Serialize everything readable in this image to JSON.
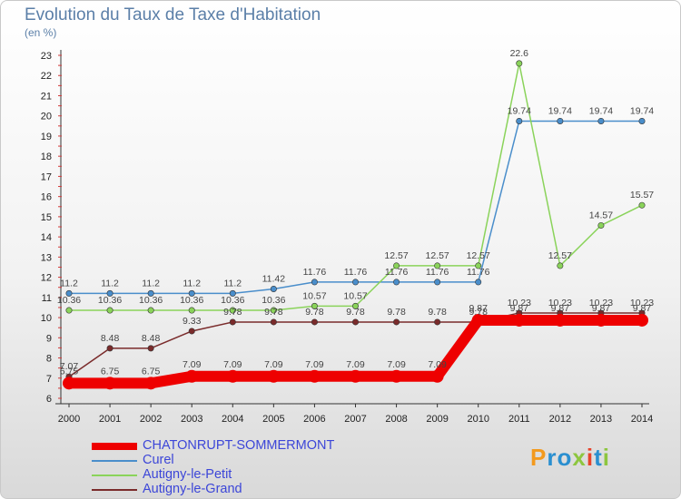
{
  "header": {
    "title": "Evolution du Taux de Taxe d'Habitation",
    "unit": "(en %)"
  },
  "chart_data": {
    "type": "line",
    "x": [
      "2000",
      "2001",
      "2002",
      "2003",
      "2004",
      "2005",
      "2006",
      "2007",
      "2008",
      "2009",
      "2010",
      "2011",
      "2012",
      "2013",
      "2014"
    ],
    "ylim": [
      6,
      23
    ],
    "yticks": [
      6,
      7,
      8,
      9,
      10,
      11,
      12,
      13,
      14,
      15,
      16,
      17,
      18,
      19,
      20,
      21,
      22,
      23
    ],
    "grid": false,
    "legend_position": "bottom-left",
    "series": [
      {
        "name": "CHATONRUPT-SOMMERMONT",
        "color": "#ee0000",
        "values": [
          6.75,
          6.75,
          6.75,
          7.09,
          7.09,
          7.09,
          7.09,
          7.09,
          7.09,
          7.09,
          9.87,
          9.87,
          9.87,
          9.87,
          9.87
        ],
        "labels": [
          "6.75",
          "6.75",
          "6.75",
          "7.09",
          "7.09",
          "7.09",
          "7.09",
          "7.09",
          "7.09",
          "7.09",
          "9.87",
          "9.87",
          "9.87",
          "9.87",
          "9.87"
        ]
      },
      {
        "name": "Curel",
        "color": "#4a8ecb",
        "values": [
          11.2,
          11.2,
          11.2,
          11.2,
          11.2,
          11.42,
          11.76,
          11.76,
          11.76,
          11.76,
          11.76,
          19.74,
          19.74,
          19.74,
          19.74
        ],
        "labels": [
          "11.2",
          "11.2",
          "11.2",
          "11.2",
          "11.2",
          "11.42",
          "11.76",
          "11.76",
          "11.76",
          "11.76",
          "11.76",
          "19.74",
          "19.74",
          "19.74",
          "19.74"
        ]
      },
      {
        "name": "Autigny-le-Petit",
        "color": "#8ad35a",
        "values": [
          10.36,
          10.36,
          10.36,
          10.36,
          10.36,
          10.36,
          10.57,
          10.57,
          12.57,
          12.57,
          12.57,
          22.6,
          12.57,
          14.57,
          15.57
        ],
        "labels": [
          "10.36",
          "10.36",
          "10.36",
          "10.36",
          "10.36",
          "10.36",
          "10.57",
          "10.57",
          "12.57",
          "12.57",
          "12.57",
          "22.6",
          "12.57",
          "14.57",
          "15.57"
        ]
      },
      {
        "name": "Autigny-le-Grand",
        "color": "#7a2b2b",
        "values": [
          7.07,
          8.48,
          8.48,
          9.33,
          9.78,
          9.78,
          9.78,
          9.78,
          9.78,
          9.78,
          9.78,
          10.23,
          10.23,
          10.23,
          10.23
        ],
        "labels": [
          "7.07",
          "8.48",
          "8.48",
          "9.33",
          "9.78",
          "9.78",
          "9.78",
          "9.78",
          "9.78",
          "9.78",
          "9.78",
          "10.23",
          "10.23",
          "10.23",
          "10.23"
        ]
      }
    ]
  },
  "legend": {
    "items": [
      "CHATONRUPT-SOMMERMONT",
      "Curel",
      "Autigny-le-Petit",
      "Autigny-le-Grand"
    ]
  },
  "logo": {
    "text": "Proxiti",
    "letters": [
      "P",
      "r",
      "o",
      "x",
      "i",
      "t",
      "i"
    ]
  }
}
